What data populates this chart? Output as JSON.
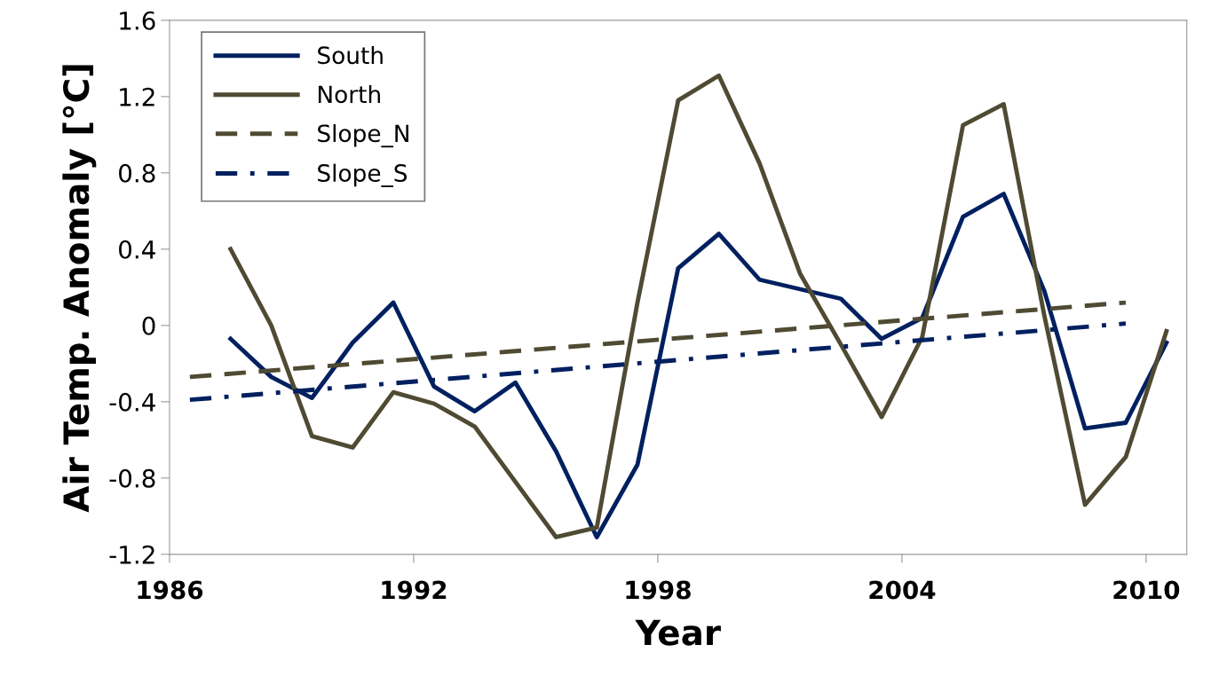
{
  "chart_data": {
    "type": "line",
    "xlabel": "Year",
    "ylabel": "Air Temp. Anomaly [°C]",
    "xlim": [
      1986,
      2011
    ],
    "xticks": [
      1986,
      1992,
      1998,
      2004,
      2010
    ],
    "ylim": [
      -1.2,
      1.6
    ],
    "yticks": [
      {
        "value": -1.2,
        "label": "-1.2"
      },
      {
        "value": -0.8,
        "label": "-0.8"
      },
      {
        "value": -0.4,
        "label": "-0.4"
      },
      0,
      0.4,
      0.8,
      1.2,
      1.6
    ],
    "grid": false,
    "legend": "top left",
    "marker": "none",
    "series": [
      {
        "name": "South",
        "color": "#002060",
        "line_style": "solid",
        "x": [
          1987.5,
          1988.5,
          1989.5,
          1990.5,
          1991.5,
          1992.5,
          1993.5,
          1994.5,
          1995.5,
          1996.5,
          1997.5,
          1998.5,
          1999.5,
          2000.5,
          2001.5,
          2002.5,
          2003.5,
          2004.5,
          2005.5,
          2006.5,
          2007.5,
          2008.5,
          2009.5,
          2010.5
        ],
        "values": [
          -0.07,
          -0.27,
          -0.38,
          -0.09,
          0.12,
          -0.32,
          -0.45,
          -0.3,
          -0.66,
          -1.11,
          -0.73,
          0.3,
          0.48,
          0.24,
          0.19,
          0.14,
          -0.07,
          0.04,
          0.57,
          0.69,
          0.18,
          -0.54,
          -0.51,
          -0.09
        ]
      },
      {
        "name": "North",
        "color": "#4f4a32",
        "line_style": "solid",
        "x": [
          1987.5,
          1988.5,
          1989.5,
          1990.5,
          1991.5,
          1992.5,
          1993.5,
          1994.5,
          1995.5,
          1996.5,
          1997.5,
          1998.5,
          1999.5,
          2000.5,
          2001.5,
          2002.5,
          2003.5,
          2004.5,
          2005.5,
          2006.5,
          2007.5,
          2008.5,
          2009.5,
          2010.5
        ],
        "values": [
          0.4,
          0.0,
          -0.58,
          -0.64,
          -0.35,
          -0.41,
          -0.53,
          -0.82,
          -1.11,
          -1.06,
          0.12,
          1.18,
          1.31,
          0.85,
          0.27,
          -0.1,
          -0.48,
          -0.06,
          1.05,
          1.16,
          0.05,
          -0.94,
          -0.69,
          -0.03
        ]
      },
      {
        "name": "Slope_N",
        "color": "#4f4a32",
        "line_style": "dashed",
        "x": [
          1986.5,
          2009.5
        ],
        "values": [
          -0.27,
          0.12
        ]
      },
      {
        "name": "Slope_S",
        "color": "#002060",
        "line_style": "dashdot",
        "x": [
          1986.5,
          2009.5
        ],
        "values": [
          -0.39,
          0.01
        ]
      }
    ]
  }
}
